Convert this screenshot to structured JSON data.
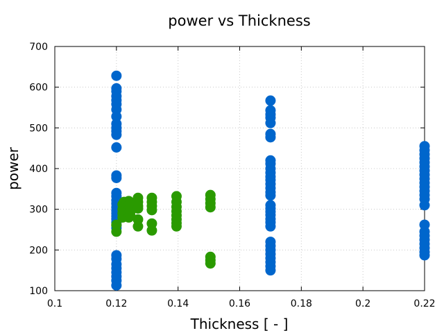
{
  "chart_data": {
    "type": "scatter",
    "title": "power vs Thickness",
    "xlabel": "Thickness [ - ]",
    "ylabel": "power",
    "xlim": [
      0.1,
      0.22
    ],
    "ylim": [
      100,
      700
    ],
    "xticks": [
      0.1,
      0.12,
      0.14,
      0.16,
      0.18,
      0.2,
      0.22
    ],
    "xtick_labels": [
      "0.1",
      "0.12",
      "0.14",
      "0.16",
      "0.18",
      "0.2",
      "0.22"
    ],
    "yticks": [
      100,
      200,
      300,
      400,
      500,
      600,
      700
    ],
    "ytick_labels": [
      "100",
      "200",
      "300",
      "400",
      "500",
      "600",
      "700"
    ],
    "grid": true,
    "series": [
      {
        "color": "#0066cc",
        "points": [
          [
            0.12,
            628
          ],
          [
            0.12,
            597
          ],
          [
            0.12,
            590
          ],
          [
            0.12,
            578
          ],
          [
            0.12,
            568
          ],
          [
            0.12,
            558
          ],
          [
            0.12,
            545
          ],
          [
            0.12,
            528
          ],
          [
            0.12,
            510
          ],
          [
            0.12,
            500
          ],
          [
            0.12,
            492
          ],
          [
            0.12,
            483
          ],
          [
            0.12,
            452
          ],
          [
            0.12,
            383
          ],
          [
            0.12,
            377
          ],
          [
            0.12,
            340
          ],
          [
            0.12,
            332
          ],
          [
            0.12,
            322
          ],
          [
            0.12,
            314
          ],
          [
            0.12,
            305
          ],
          [
            0.12,
            297
          ],
          [
            0.12,
            290
          ],
          [
            0.12,
            283
          ],
          [
            0.12,
            276
          ],
          [
            0.12,
            268
          ],
          [
            0.12,
            260
          ],
          [
            0.12,
            254
          ],
          [
            0.12,
            187
          ],
          [
            0.12,
            178
          ],
          [
            0.12,
            165
          ],
          [
            0.12,
            155
          ],
          [
            0.12,
            145
          ],
          [
            0.12,
            135
          ],
          [
            0.12,
            125
          ],
          [
            0.12,
            113
          ],
          [
            0.17,
            567
          ],
          [
            0.17,
            543
          ],
          [
            0.17,
            533
          ],
          [
            0.17,
            525
          ],
          [
            0.17,
            512
          ],
          [
            0.17,
            485
          ],
          [
            0.17,
            477
          ],
          [
            0.17,
            420
          ],
          [
            0.17,
            412
          ],
          [
            0.17,
            400
          ],
          [
            0.17,
            390
          ],
          [
            0.17,
            380
          ],
          [
            0.17,
            372
          ],
          [
            0.17,
            362
          ],
          [
            0.17,
            352
          ],
          [
            0.17,
            342
          ],
          [
            0.17,
            334
          ],
          [
            0.17,
            310
          ],
          [
            0.17,
            302
          ],
          [
            0.17,
            294
          ],
          [
            0.17,
            286
          ],
          [
            0.17,
            276
          ],
          [
            0.17,
            268
          ],
          [
            0.17,
            258
          ],
          [
            0.17,
            220
          ],
          [
            0.17,
            210
          ],
          [
            0.17,
            200
          ],
          [
            0.17,
            190
          ],
          [
            0.17,
            180
          ],
          [
            0.17,
            170
          ],
          [
            0.17,
            160
          ],
          [
            0.17,
            150
          ],
          [
            0.22,
            455
          ],
          [
            0.22,
            445
          ],
          [
            0.22,
            435
          ],
          [
            0.22,
            425
          ],
          [
            0.22,
            415
          ],
          [
            0.22,
            405
          ],
          [
            0.22,
            395
          ],
          [
            0.22,
            385
          ],
          [
            0.22,
            375
          ],
          [
            0.22,
            365
          ],
          [
            0.22,
            355
          ],
          [
            0.22,
            345
          ],
          [
            0.22,
            335
          ],
          [
            0.22,
            325
          ],
          [
            0.22,
            310
          ],
          [
            0.22,
            262
          ],
          [
            0.22,
            245
          ],
          [
            0.22,
            235
          ],
          [
            0.22,
            225
          ],
          [
            0.22,
            215
          ],
          [
            0.22,
            205
          ],
          [
            0.22,
            195
          ],
          [
            0.22,
            187
          ]
        ]
      },
      {
        "color": "#2a9a00",
        "points": [
          [
            0.12,
            245
          ],
          [
            0.12,
            262
          ],
          [
            0.122,
            312
          ],
          [
            0.122,
            300
          ],
          [
            0.122,
            290
          ],
          [
            0.122,
            280
          ],
          [
            0.1225,
            318
          ],
          [
            0.1225,
            306
          ],
          [
            0.1225,
            296
          ],
          [
            0.1225,
            285
          ],
          [
            0.124,
            320
          ],
          [
            0.124,
            310
          ],
          [
            0.124,
            300
          ],
          [
            0.124,
            290
          ],
          [
            0.124,
            280
          ],
          [
            0.1245,
            316
          ],
          [
            0.1245,
            305
          ],
          [
            0.1245,
            294
          ],
          [
            0.1245,
            284
          ],
          [
            0.127,
            328
          ],
          [
            0.127,
            318
          ],
          [
            0.127,
            308
          ],
          [
            0.127,
            302
          ],
          [
            0.127,
            275
          ],
          [
            0.127,
            258
          ],
          [
            0.1315,
            328
          ],
          [
            0.1315,
            318
          ],
          [
            0.1315,
            308
          ],
          [
            0.1315,
            298
          ],
          [
            0.1315,
            265
          ],
          [
            0.1315,
            248
          ],
          [
            0.1395,
            332
          ],
          [
            0.1395,
            318
          ],
          [
            0.1395,
            306
          ],
          [
            0.1395,
            295
          ],
          [
            0.1395,
            285
          ],
          [
            0.1395,
            275
          ],
          [
            0.1395,
            266
          ],
          [
            0.1395,
            258
          ],
          [
            0.1505,
            335
          ],
          [
            0.1505,
            325
          ],
          [
            0.1505,
            315
          ],
          [
            0.1505,
            305
          ],
          [
            0.1505,
            183
          ],
          [
            0.1505,
            175
          ],
          [
            0.1505,
            167
          ]
        ]
      }
    ]
  }
}
